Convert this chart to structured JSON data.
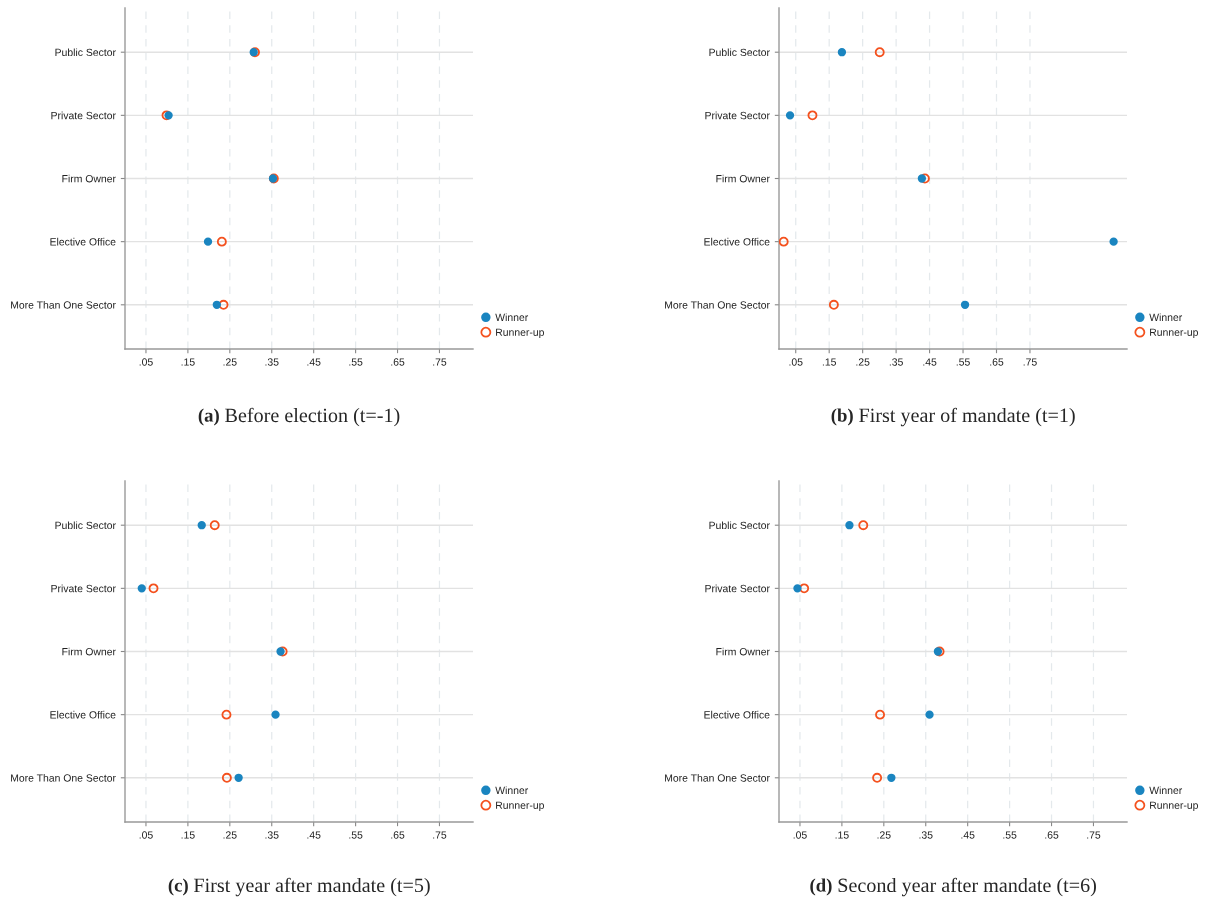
{
  "chart_data": [
    {
      "type": "scatter",
      "title": "(a) Before election (t=-1)",
      "categories": [
        "Public Sector",
        "Private Sector",
        "Firm Owner",
        "Elective Office",
        "More Than One Sector"
      ],
      "orientation": "horizontal",
      "xlim": [
        0,
        0.83
      ],
      "xticks": [
        {
          "value": 0.05,
          "label": ".05"
        },
        {
          "value": 0.15,
          "label": ".15"
        },
        {
          "value": 0.25,
          "label": ".25"
        },
        {
          "value": 0.35,
          "label": ".35"
        },
        {
          "value": 0.45,
          "label": ".45"
        },
        {
          "value": 0.55,
          "label": ".55"
        },
        {
          "value": 0.65,
          "label": ".65"
        },
        {
          "value": 0.75,
          "label": ".75"
        }
      ],
      "grid": true,
      "legend": "bottom right",
      "marker": "circle",
      "series": [
        {
          "name": "Winner",
          "color": "#1a85c0",
          "values": [
            0.307,
            0.104,
            0.353,
            0.198,
            0.219
          ]
        },
        {
          "name": "Runner-up",
          "color": "#f4511e",
          "values": [
            0.31,
            0.099,
            0.355,
            0.231,
            0.235
          ]
        }
      ]
    },
    {
      "type": "scatter",
      "title": "(b) First year of mandate (t=1)",
      "categories": [
        "Public Sector",
        "Private Sector",
        "Firm Owner",
        "Elective Office",
        "More Than One Sector"
      ],
      "orientation": "horizontal",
      "xlim": [
        0,
        1.04
      ],
      "xticks": [
        {
          "value": 0.05,
          "label": ".05"
        },
        {
          "value": 0.15,
          "label": ".15"
        },
        {
          "value": 0.25,
          "label": ".25"
        },
        {
          "value": 0.35,
          "label": ".35"
        },
        {
          "value": 0.45,
          "label": ".45"
        },
        {
          "value": 0.55,
          "label": ".55"
        },
        {
          "value": 0.65,
          "label": ".65"
        },
        {
          "value": 0.75,
          "label": ".75"
        }
      ],
      "grid": true,
      "legend": "bottom right",
      "marker": "circle",
      "series": [
        {
          "name": "Winner",
          "color": "#1a85c0",
          "values": [
            0.188,
            0.033,
            0.427,
            1.0,
            0.556
          ]
        },
        {
          "name": "Runner-up",
          "color": "#f4511e",
          "values": [
            0.301,
            0.1,
            0.436,
            0.014,
            0.164
          ]
        }
      ]
    },
    {
      "type": "scatter",
      "title": "(c) First year after mandate (t=5)",
      "categories": [
        "Public Sector",
        "Private Sector",
        "Firm Owner",
        "Elective Office",
        "More Than One Sector"
      ],
      "orientation": "horizontal",
      "xlim": [
        0,
        0.83
      ],
      "xticks": [
        {
          "value": 0.05,
          "label": ".05"
        },
        {
          "value": 0.15,
          "label": ".15"
        },
        {
          "value": 0.25,
          "label": ".25"
        },
        {
          "value": 0.35,
          "label": ".35"
        },
        {
          "value": 0.45,
          "label": ".45"
        },
        {
          "value": 0.55,
          "label": ".55"
        },
        {
          "value": 0.65,
          "label": ".65"
        },
        {
          "value": 0.75,
          "label": ".75"
        }
      ],
      "grid": true,
      "legend": "bottom right",
      "marker": "circle",
      "series": [
        {
          "name": "Winner",
          "color": "#1a85c0",
          "values": [
            0.183,
            0.04,
            0.371,
            0.359,
            0.271
          ]
        },
        {
          "name": "Runner-up",
          "color": "#f4511e",
          "values": [
            0.214,
            0.068,
            0.376,
            0.242,
            0.243
          ]
        }
      ]
    },
    {
      "type": "scatter",
      "title": "(d) Second year after mandate (t=6)",
      "categories": [
        "Public Sector",
        "Private Sector",
        "Firm Owner",
        "Elective Office",
        "More Than One Sector"
      ],
      "orientation": "horizontal",
      "xlim": [
        0,
        0.83
      ],
      "xticks": [
        {
          "value": 0.05,
          "label": ".05"
        },
        {
          "value": 0.15,
          "label": ".15"
        },
        {
          "value": 0.25,
          "label": ".25"
        },
        {
          "value": 0.35,
          "label": ".35"
        },
        {
          "value": 0.45,
          "label": ".45"
        },
        {
          "value": 0.55,
          "label": ".55"
        },
        {
          "value": 0.65,
          "label": ".65"
        },
        {
          "value": 0.75,
          "label": ".75"
        }
      ],
      "grid": true,
      "legend": "bottom right",
      "marker": "circle",
      "series": [
        {
          "name": "Winner",
          "color": "#1a85c0",
          "values": [
            0.168,
            0.044,
            0.379,
            0.359,
            0.268
          ]
        },
        {
          "name": "Runner-up",
          "color": "#f4511e",
          "values": [
            0.201,
            0.06,
            0.383,
            0.241,
            0.234
          ]
        }
      ]
    }
  ]
}
